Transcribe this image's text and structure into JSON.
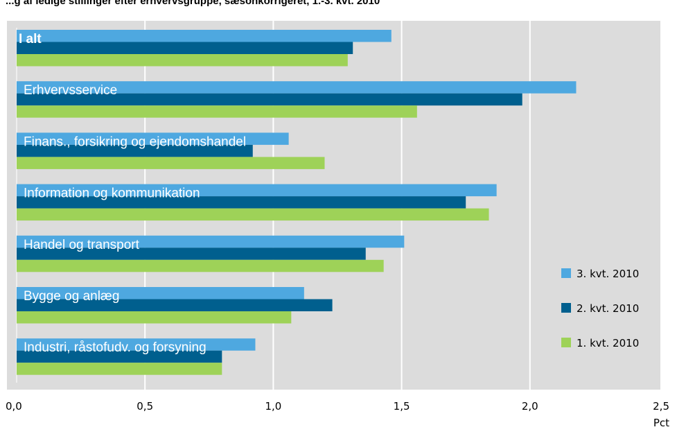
{
  "chart_data": {
    "type": "bar",
    "orientation": "horizontal",
    "title": "...g af ledige stillinger efter erhvervsgruppe, sæsonkorrigeret, 1.-3. kvt. 2010",
    "categories": [
      "I alt",
      "Erhvervsservice",
      "Finans., forsikring og ejendomshandel",
      "Information og kommunikation",
      "Handel og transport",
      "Bygge og anlæg",
      "Industri, råstofudv. og forsyning"
    ],
    "series": [
      {
        "name": "3. kvt. 2010",
        "color": "#4ea8e0",
        "values": [
          1.46,
          2.18,
          1.06,
          1.87,
          1.51,
          1.12,
          0.93
        ]
      },
      {
        "name": "2. kvt. 2010",
        "color": "#005f8e",
        "values": [
          1.31,
          1.97,
          0.92,
          1.75,
          1.36,
          1.23,
          0.8
        ]
      },
      {
        "name": "1. kvt. 2010",
        "color": "#9ed258",
        "values": [
          1.29,
          1.56,
          1.2,
          1.84,
          1.43,
          1.07,
          0.8
        ]
      }
    ],
    "xlim": [
      0,
      2.5
    ],
    "xticks": [
      "0,0",
      "0,5",
      "1,0",
      "1,5",
      "2,0",
      "2,5"
    ],
    "xunit": "Pct",
    "grid": true,
    "legend": "right",
    "background": "#dcdcdc"
  }
}
